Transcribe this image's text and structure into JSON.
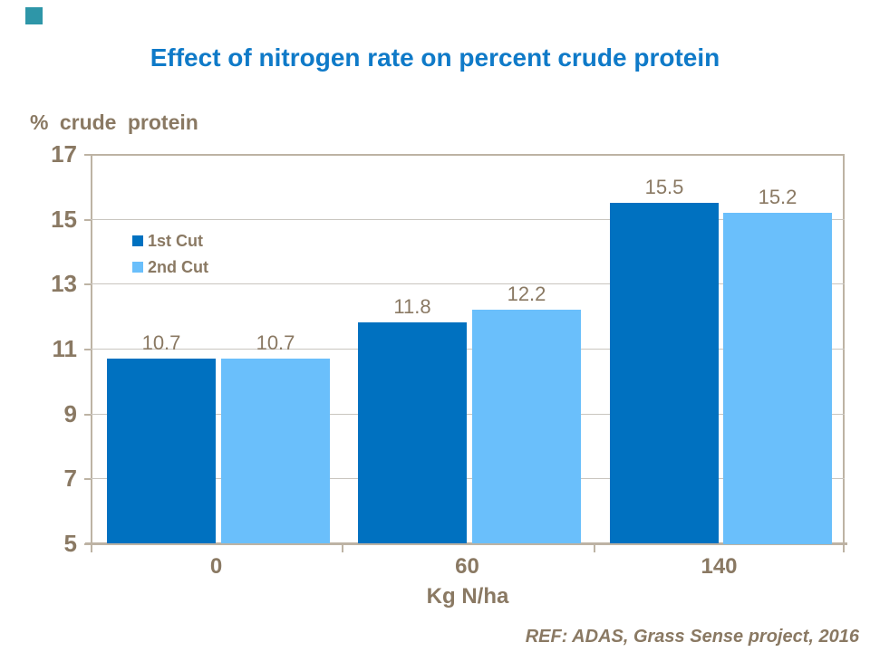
{
  "slide": {
    "title": "Effect of nitrogen rate on percent crude protein",
    "reference": "REF: ADAS, Grass Sense project, 2016"
  },
  "chart_data": {
    "type": "bar",
    "title": "Effect of nitrogen rate on percent crude protein",
    "y_axis_title": "% crude protein",
    "xlabel": "Kg N/ha",
    "ylabel": "% crude protein",
    "categories": [
      "0",
      "60",
      "140"
    ],
    "series": [
      {
        "name": "1st Cut",
        "color": "#0071C0",
        "values": [
          10.7,
          11.8,
          15.5
        ],
        "labels": [
          "10.7",
          "11.8",
          "15.5"
        ]
      },
      {
        "name": "2nd Cut",
        "color": "#6ABFFB",
        "values": [
          10.7,
          12.2,
          15.2
        ],
        "labels": [
          "10.7",
          "12.2",
          "15.2"
        ]
      }
    ],
    "ylim": [
      5,
      17
    ],
    "yticks": [
      5,
      7,
      9,
      11,
      13,
      15,
      17
    ],
    "grid": "horizontal",
    "legend_position": "inside-top-left"
  },
  "colors": {
    "series_1st_cut": "#0071C0",
    "series_2nd_cut": "#6ABFFB",
    "title_blue": "#0F7AC8",
    "text_brown": "#8A7963",
    "axis_taupe": "#BDB3A4",
    "gridline_gray": "#C9C5BF",
    "corner_teal": "#2E96A8"
  }
}
